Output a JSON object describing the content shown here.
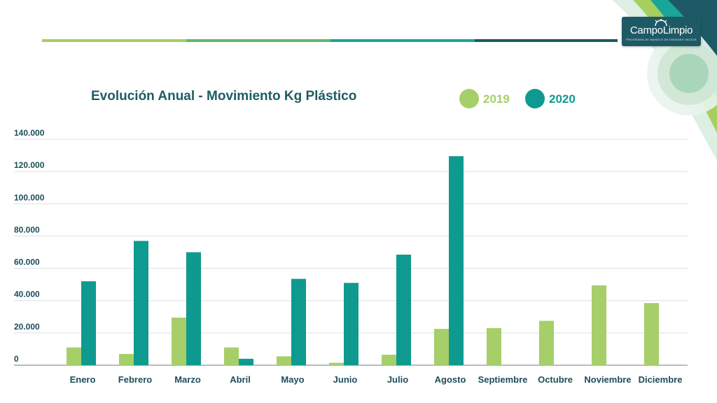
{
  "brand": {
    "logo_name": "CampoLimpio",
    "logo_subtitle": "PROGRAMA DE MANEJO DE ENVASES VACÍOS",
    "colors": {
      "bar_1": "#a6cf5e",
      "bar_2": "#5fb86a",
      "bar_3": "#19a59a",
      "bar_4": "#1e5a66",
      "logo_bg": "#1e5a66"
    }
  },
  "chart_data": {
    "type": "bar",
    "title": "Evolución Anual - Movimiento Kg Plástico",
    "xlabel": "",
    "ylabel": "",
    "ylim": [
      0,
      140000
    ],
    "yticks": [
      0,
      20000,
      40000,
      60000,
      80000,
      100000,
      120000,
      140000
    ],
    "ytick_labels": [
      "0",
      "20.000",
      "40.000",
      "60.000",
      "80.000",
      "100.000",
      "120.000",
      "140.000"
    ],
    "grid": true,
    "legend_position": "top-right",
    "categories": [
      "Enero",
      "Febrero",
      "Marzo",
      "Abril",
      "Mayo",
      "Junio",
      "Julio",
      "Agosto",
      "Septiembre",
      "Octubre",
      "Noviembre",
      "Diciembre"
    ],
    "series": [
      {
        "name": "2019",
        "color": "#a6cf6a",
        "values": [
          11000,
          7000,
          29500,
          11000,
          5500,
          1500,
          6500,
          22500,
          23000,
          27500,
          49500,
          38500
        ]
      },
      {
        "name": "2020",
        "color": "#0e9a8f",
        "values": [
          52000,
          77000,
          70000,
          4000,
          53500,
          51000,
          68500,
          129500,
          null,
          null,
          null,
          null
        ]
      }
    ]
  }
}
